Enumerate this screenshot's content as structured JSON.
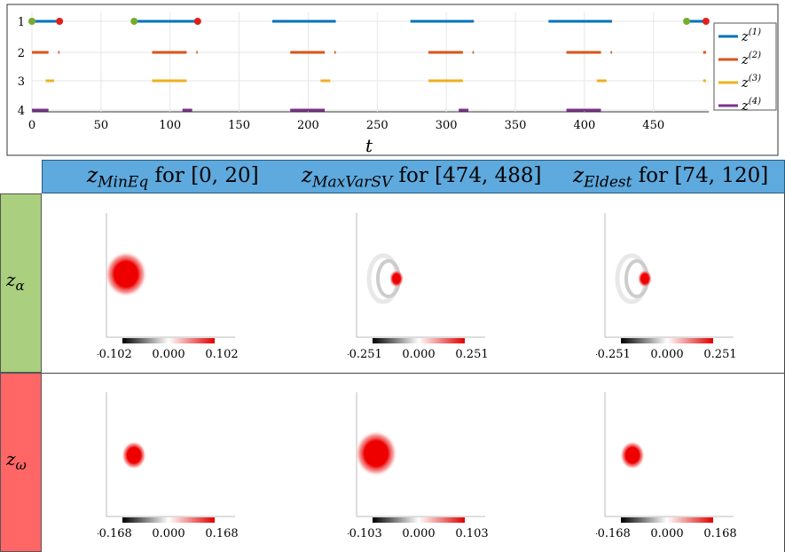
{
  "chart_data": {
    "type": "timeline",
    "xlabel": "t",
    "xticks": [
      0,
      50,
      100,
      150,
      200,
      250,
      300,
      350,
      400,
      450
    ],
    "xlim": [
      0,
      490
    ],
    "yticks": [
      "1",
      "2",
      "3",
      "4"
    ],
    "legend": {
      "placement": "right",
      "entries": [
        "z(1)",
        "z(2)",
        "z(3)",
        "z(4)"
      ]
    },
    "colors": [
      "#0072bd",
      "#d95319",
      "#edb120",
      "#7e2f8e"
    ],
    "series": [
      {
        "name": "z(1)",
        "row": 1,
        "segments": [
          [
            0,
            20
          ],
          [
            74,
            120
          ],
          [
            174,
            220
          ],
          [
            274,
            320
          ],
          [
            374,
            420
          ],
          [
            474,
            488
          ]
        ]
      },
      {
        "name": "z(2)",
        "row": 2,
        "segments": [
          [
            0,
            12
          ],
          [
            19,
            20
          ],
          [
            87,
            112
          ],
          [
            119,
            120
          ],
          [
            187,
            212
          ],
          [
            219,
            220
          ],
          [
            287,
            312
          ],
          [
            319,
            320
          ],
          [
            387,
            412
          ],
          [
            419,
            420
          ],
          [
            486,
            488
          ]
        ]
      },
      {
        "name": "z(3)",
        "row": 3,
        "segments": [
          [
            10,
            16
          ],
          [
            87,
            112
          ],
          [
            209,
            216
          ],
          [
            287,
            312
          ],
          [
            409,
            416
          ],
          [
            486,
            488
          ]
        ]
      },
      {
        "name": "z(4)",
        "row": 4,
        "segments": [
          [
            0,
            12
          ],
          [
            109,
            116
          ],
          [
            187,
            212
          ],
          [
            309,
            316
          ],
          [
            387,
            412
          ]
        ]
      }
    ],
    "markers": [
      {
        "t": 0,
        "row": 1,
        "color": "#77ac30"
      },
      {
        "t": 20,
        "row": 1,
        "color": "#e0201b"
      },
      {
        "t": 74,
        "row": 1,
        "color": "#77ac30"
      },
      {
        "t": 120,
        "row": 1,
        "color": "#e0201b"
      },
      {
        "t": 474,
        "row": 1,
        "color": "#77ac30"
      },
      {
        "t": 488,
        "row": 1,
        "color": "#e0201b"
      }
    ]
  },
  "columns": [
    {
      "var": "z",
      "sub": "MinEq",
      "text": " for [0, 20]"
    },
    {
      "var": "z",
      "sub": "MaxVarSV",
      "text": " for [474, 488]"
    },
    {
      "var": "z",
      "sub": "Eldest",
      "text": " for [74, 120]"
    }
  ],
  "rows": [
    {
      "var": "z",
      "sub": "α",
      "color": "#a9cf7f"
    },
    {
      "var": "z",
      "sub": "ω",
      "color": "#ff6666"
    }
  ],
  "maps": [
    [
      {
        "colorbar": [
          "-0.102",
          "0.000",
          "0.102"
        ],
        "blob": "large-left"
      },
      {
        "colorbar": [
          "-0.251",
          "0.000",
          "0.251"
        ],
        "blob": "small-ring"
      },
      {
        "colorbar": [
          "-0.251",
          "0.000",
          "0.251"
        ],
        "blob": "small-ring"
      }
    ],
    [
      {
        "colorbar": [
          "-0.168",
          "0.000",
          "0.168"
        ],
        "blob": "medium"
      },
      {
        "colorbar": [
          "-0.103",
          "0.000",
          "0.103"
        ],
        "blob": "large-left"
      },
      {
        "colorbar": [
          "-0.168",
          "0.000",
          "0.168"
        ],
        "blob": "medium"
      }
    ]
  ]
}
